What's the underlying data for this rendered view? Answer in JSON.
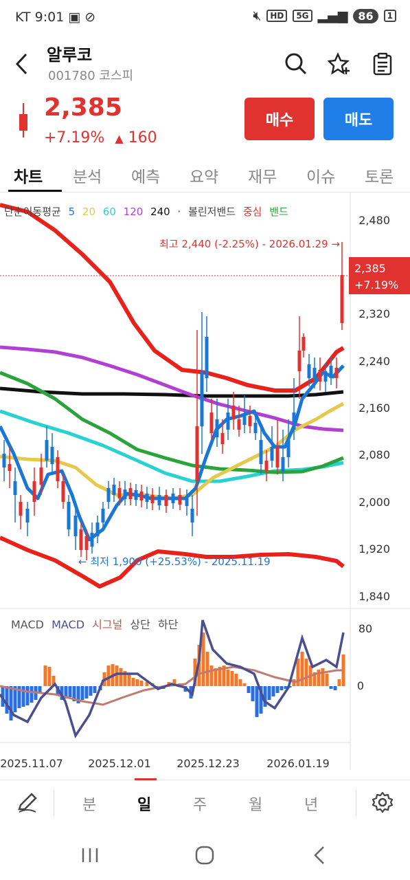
{
  "status_bar": {
    "carrier_time": "KT 9:01",
    "network": "5G",
    "hd": "HD",
    "battery": "86",
    "sim": "1"
  },
  "header": {
    "stock_name": "알루코",
    "stock_code": "001780 코스피"
  },
  "price": {
    "current": "2,385",
    "change_pct": "+7.19%",
    "change_abs": "160",
    "color": "#e0322f"
  },
  "actions": {
    "buy_label": "매수",
    "sell_label": "매도"
  },
  "tabs": [
    "차트",
    "분석",
    "예측",
    "요약",
    "재무",
    "이슈",
    "토론"
  ],
  "indicators": {
    "ma_label": "단순이동평균",
    "ma_periods": [
      "5",
      "20",
      "60",
      "120",
      "240"
    ],
    "ma_colors": [
      "#1b77d4",
      "#e6c84a",
      "#28d2d2",
      "#b13fd1",
      "#111111"
    ],
    "separator": "·",
    "bb_label": "볼린저밴드",
    "bb_center": "중심",
    "bb_band": "밴드"
  },
  "annotations": {
    "high": "최고 2,440 (-2.25%) - 2026.01.29 →",
    "low": "← 최저 1,900 (+25.53%) - 2025.11.19",
    "price_tag": "2,385",
    "pct_tag": "+7.19%"
  },
  "chart_data": {
    "type": "candlestick",
    "price_axis_ticks": [
      "2,480",
      "2,320",
      "2,240",
      "2,160",
      "2,080",
      "2,000",
      "1,920",
      "1,840"
    ],
    "macd_legend": {
      "macd": "MACD",
      "macd_line": "MACD",
      "signal": "시그널",
      "upper": "상단",
      "lower": "하단"
    },
    "macd_axis_ticks": [
      "80",
      "0"
    ],
    "date_ticks": [
      "2025.11.07",
      "2025.12.01",
      "2025.12.23",
      "2026.01.19"
    ],
    "current_price": 2385,
    "high": 2440,
    "low": 1900
  },
  "period_tabs": [
    "분",
    "일",
    "주",
    "월",
    "년"
  ]
}
